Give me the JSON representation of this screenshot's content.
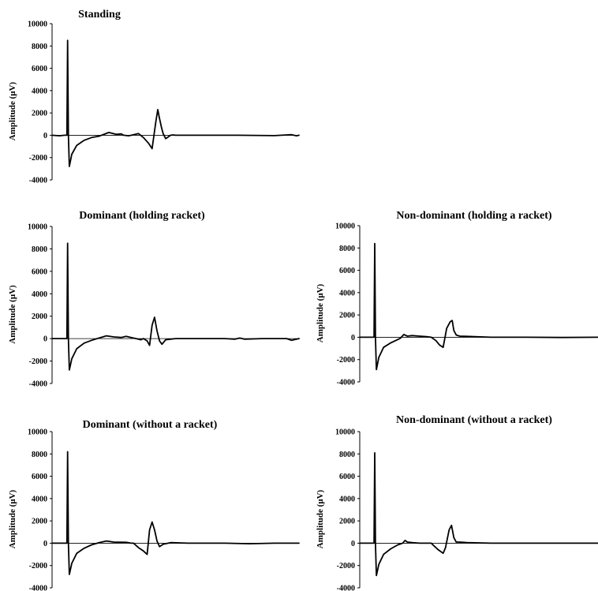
{
  "chart_data": [
    {
      "type": "line",
      "title": "Standing",
      "ylabel": "Amplitude (μV)",
      "xlabel": "",
      "ylim": [
        -4000,
        10000
      ],
      "yticks": [
        "-4000",
        "-2000",
        "0",
        "2000",
        "4000",
        "6000",
        "8000",
        "10000"
      ],
      "series": [
        {
          "x": [
            0,
            3,
            5,
            6,
            6.3,
            6.6,
            7,
            8,
            10,
            13,
            16,
            19,
            23,
            26,
            28,
            29,
            31,
            33,
            35,
            37,
            39,
            40.5,
            42,
            42.8,
            43.5,
            44.3,
            45,
            46,
            47,
            48,
            49,
            50,
            60,
            75,
            90,
            95,
            97,
            99,
            100
          ],
          "y": [
            0,
            -50,
            0,
            0,
            8500,
            0,
            -2800,
            -1700,
            -900,
            -450,
            -200,
            -80,
            250,
            80,
            120,
            0,
            -50,
            50,
            150,
            -200,
            -700,
            -1200,
            1200,
            2300,
            1500,
            700,
            150,
            -300,
            -150,
            0,
            30,
            0,
            0,
            0,
            -30,
            30,
            50,
            -50,
            0
          ]
        }
      ]
    },
    {
      "type": "line",
      "title": "Dominant (holding racket)",
      "ylabel": "Amplitude (μV)",
      "xlabel": "",
      "ylim": [
        -4000,
        10000
      ],
      "yticks": [
        "-4000",
        "-2000",
        "0",
        "2000",
        "4000",
        "6000",
        "8000",
        "10000"
      ],
      "series": [
        {
          "x": [
            0,
            3,
            5,
            6,
            6.3,
            6.6,
            7,
            8,
            10,
            13,
            16,
            19,
            22,
            25,
            28,
            30,
            32,
            34,
            36,
            37,
            38.5,
            39.5,
            40.5,
            41.5,
            42.5,
            43.5,
            44.5,
            46,
            50,
            60,
            70,
            74,
            76,
            78,
            85,
            95,
            97,
            100
          ],
          "y": [
            0,
            0,
            0,
            0,
            8500,
            0,
            -2800,
            -1800,
            -900,
            -400,
            -150,
            50,
            250,
            150,
            100,
            200,
            100,
            0,
            -100,
            0,
            -200,
            -600,
            1200,
            1900,
            700,
            -200,
            -500,
            -100,
            0,
            0,
            0,
            -50,
            50,
            -50,
            0,
            0,
            -150,
            0
          ]
        }
      ]
    },
    {
      "type": "line",
      "title": "Non-dominant (holding a racket)",
      "ylabel": "Amplitude (μV)",
      "xlabel": "",
      "ylim": [
        -4000,
        10000
      ],
      "yticks": [
        "-4000",
        "-2000",
        "0",
        "2000",
        "4000",
        "6000",
        "8000",
        "10000"
      ],
      "series": [
        {
          "x": [
            0,
            3,
            5,
            6,
            6.3,
            6.6,
            7,
            8,
            10,
            13,
            15,
            17,
            18.5,
            20,
            22,
            25,
            28,
            30,
            32,
            33.5,
            35,
            36.5,
            38,
            38.8,
            39.5,
            40.5,
            42,
            45,
            55,
            70,
            85,
            100
          ],
          "y": [
            0,
            0,
            0,
            0,
            8400,
            0,
            -2900,
            -1800,
            -900,
            -500,
            -300,
            -100,
            250,
            100,
            150,
            100,
            50,
            0,
            -300,
            -700,
            -900,
            800,
            1400,
            1500,
            600,
            200,
            100,
            80,
            0,
            0,
            -20,
            0
          ]
        }
      ]
    },
    {
      "type": "line",
      "title": "Dominant (without a racket)",
      "ylabel": "Amplitude (μV)",
      "xlabel": "",
      "ylim": [
        -4000,
        10000
      ],
      "yticks": [
        "-4000",
        "-2000",
        "0",
        "2000",
        "4000",
        "6000",
        "8000",
        "10000"
      ],
      "series": [
        {
          "x": [
            0,
            3,
            5,
            6,
            6.3,
            6.6,
            7,
            8,
            10,
            13,
            16,
            19,
            22,
            25,
            30,
            32,
            33,
            35,
            37,
            38.5,
            39.5,
            40.5,
            41.5,
            42.5,
            43.5,
            45,
            48,
            55,
            70,
            80,
            90,
            100
          ],
          "y": [
            0,
            0,
            0,
            0,
            8200,
            0,
            -2800,
            -1800,
            -900,
            -450,
            -150,
            50,
            200,
            100,
            80,
            0,
            0,
            -400,
            -700,
            -1000,
            1200,
            1900,
            1200,
            200,
            -300,
            -100,
            50,
            0,
            0,
            -50,
            0,
            0
          ]
        }
      ]
    },
    {
      "type": "line",
      "title": "Non-dominant (without a racket)",
      "ylabel": "Amplitude (μV)",
      "xlabel": "",
      "ylim": [
        -4000,
        10000
      ],
      "yticks": [
        "-4000",
        "-2000",
        "0",
        "2000",
        "4000",
        "6000",
        "8000",
        "10000"
      ],
      "series": [
        {
          "x": [
            0,
            3,
            5,
            6,
            6.3,
            6.6,
            7,
            8,
            10,
            13,
            16,
            18,
            19,
            20,
            22,
            25,
            28,
            30,
            31,
            33,
            35,
            36,
            37.5,
            38.5,
            39.5,
            40.5,
            42,
            45,
            55,
            70,
            85,
            100
          ],
          "y": [
            0,
            0,
            0,
            0,
            8100,
            0,
            -2900,
            -1900,
            -1000,
            -500,
            -150,
            0,
            250,
            100,
            50,
            0,
            0,
            0,
            -200,
            -600,
            -900,
            -400,
            1200,
            1600,
            500,
            100,
            100,
            50,
            0,
            0,
            0,
            0
          ]
        }
      ]
    }
  ]
}
